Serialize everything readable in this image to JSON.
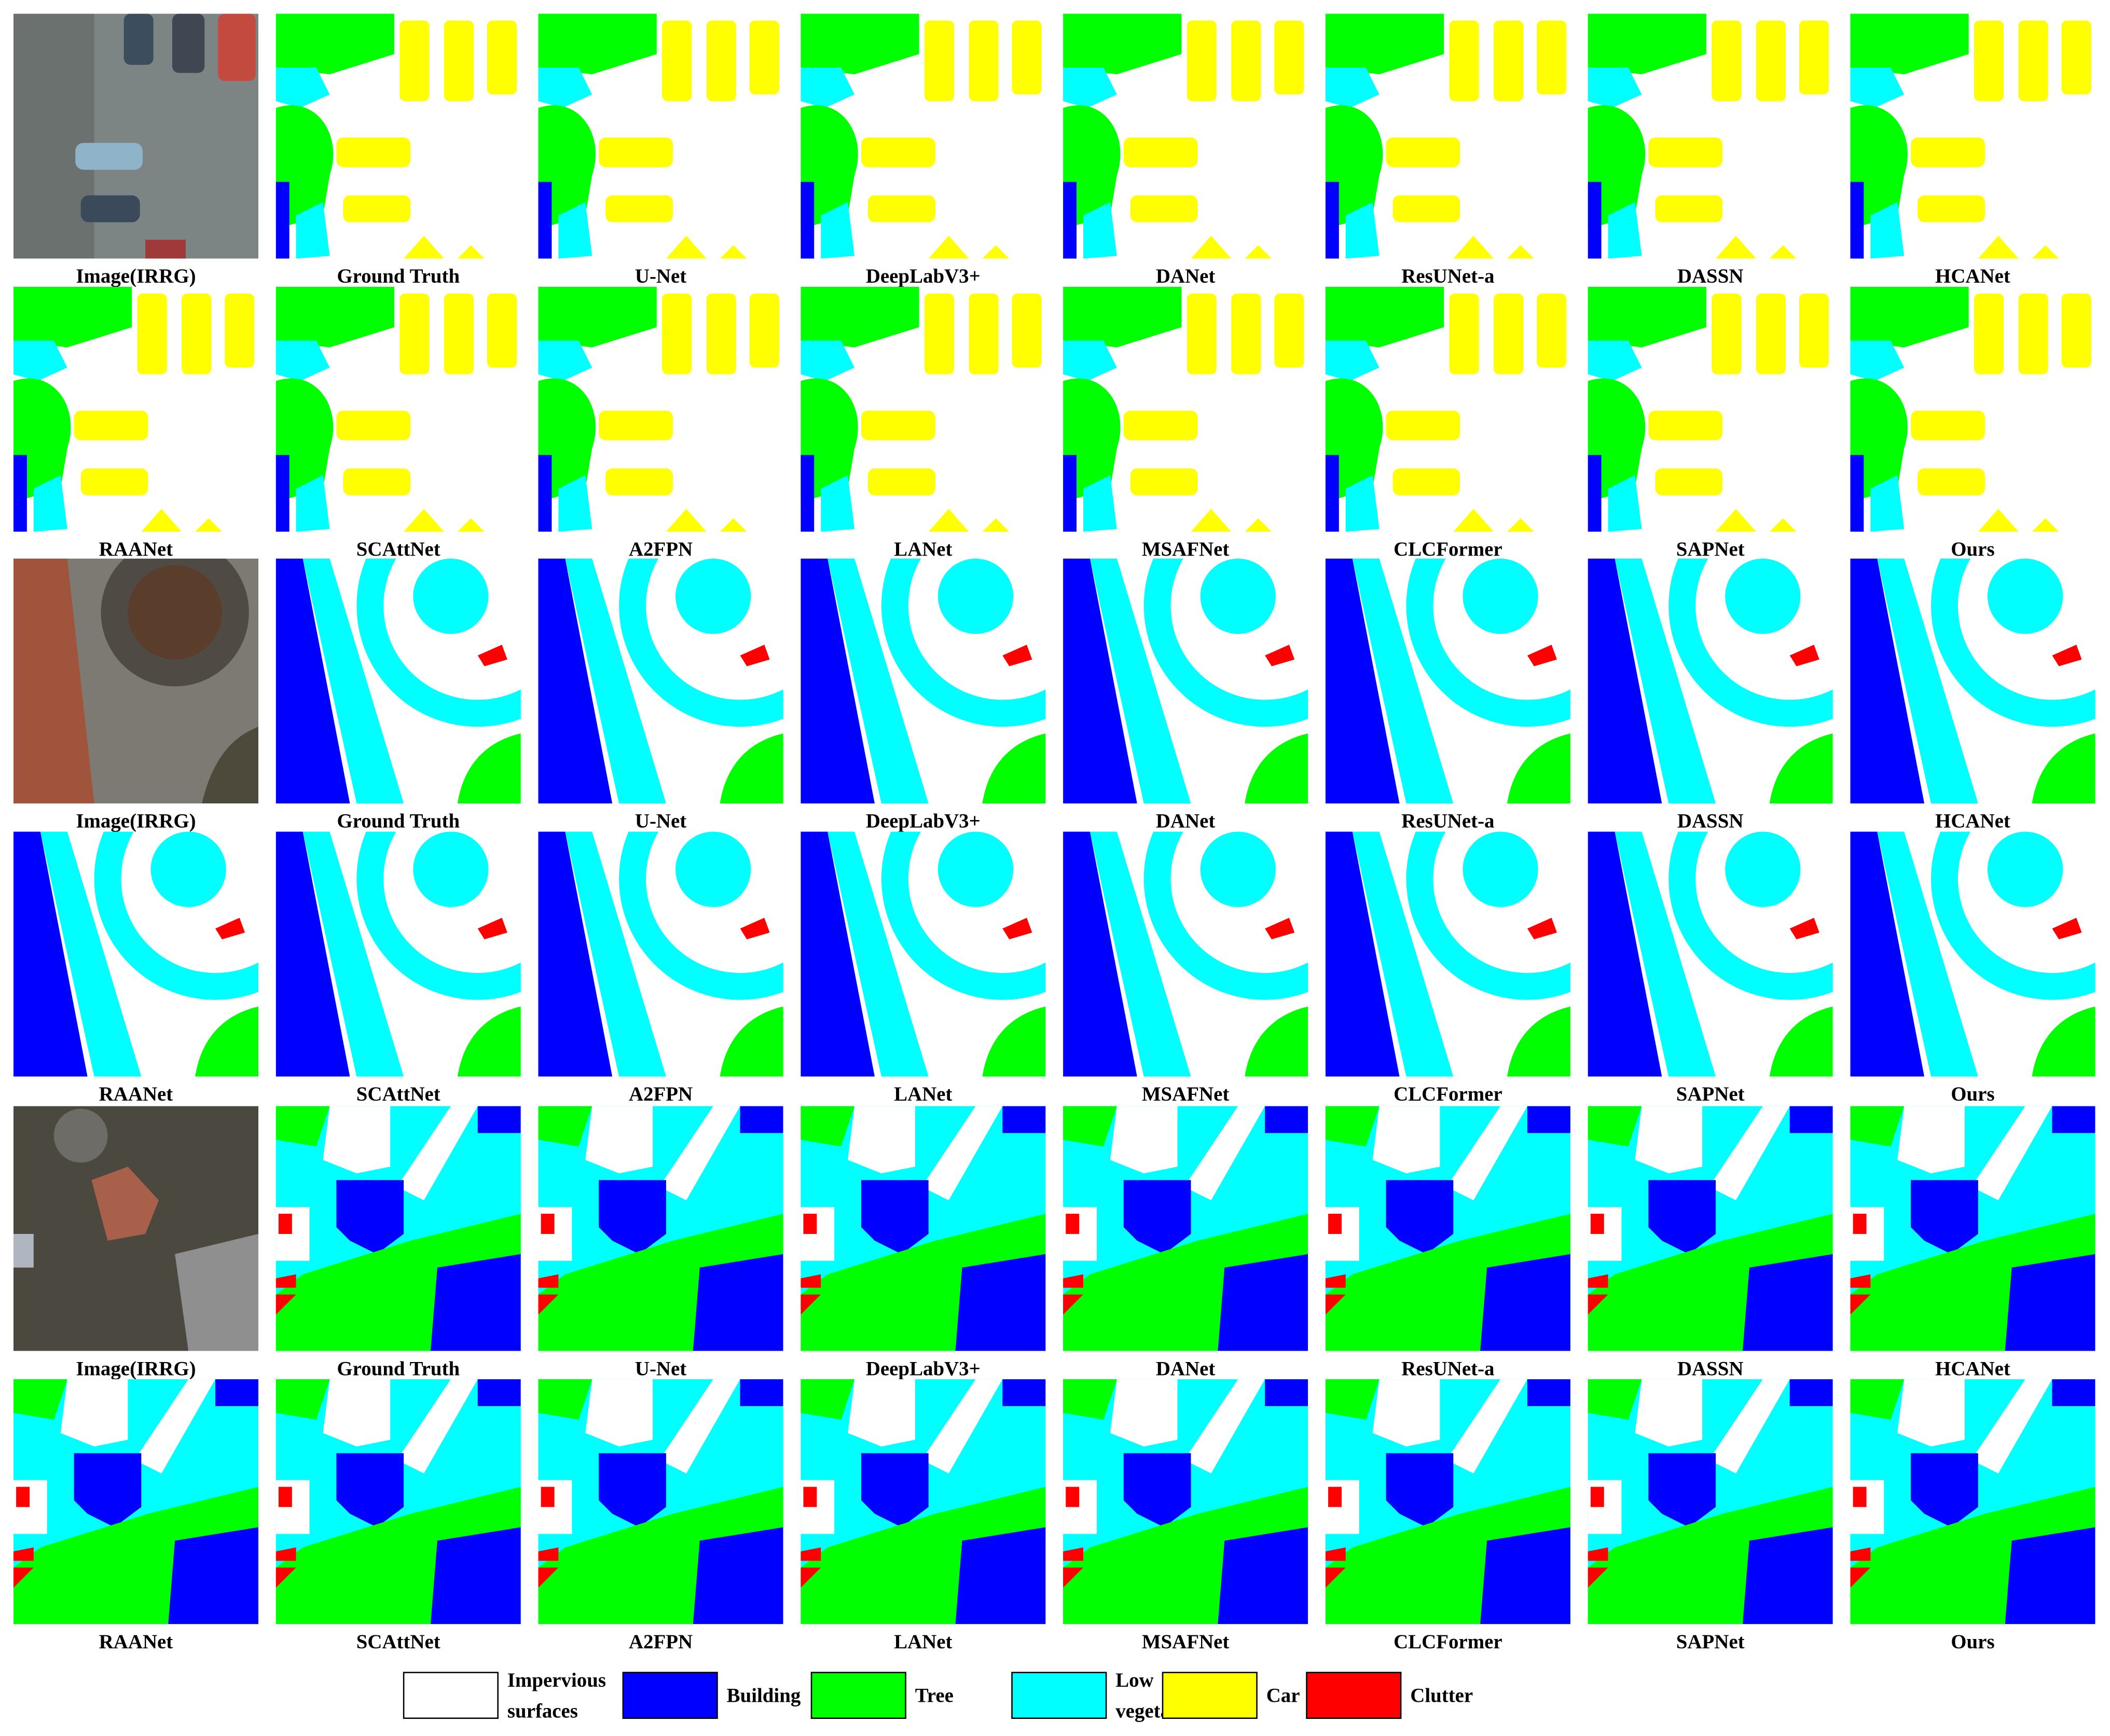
{
  "groups": [
    {
      "labels": [
        "Image(IRRG)",
        "Ground Truth",
        "U-Net",
        "DeepLabV3+",
        "DANet",
        "ResUNet-a",
        "DASSN",
        "HCANet",
        "RAANet",
        "SCAttNet",
        "A2FPN",
        "LANet",
        "MSAFNet",
        "CLCFormer",
        "SAPNet",
        "Ours"
      ]
    },
    {
      "labels": [
        "Image(IRRG)",
        "Ground Truth",
        "U-Net",
        "DeepLabV3+",
        "DANet",
        "ResUNet-a",
        "DASSN",
        "HCANet",
        "RAANet",
        "SCAttNet",
        "A2FPN",
        "LANet",
        "MSAFNet",
        "CLCFormer",
        "SAPNet",
        "Ours"
      ]
    },
    {
      "labels": [
        "Image(IRRG)",
        "Ground Truth",
        "U-Net",
        "DeepLabV3+",
        "DANet",
        "ResUNet-a",
        "DASSN",
        "HCANet",
        "RAANet",
        "SCAttNet",
        "A2FPN",
        "LANet",
        "MSAFNet",
        "CLCFormer",
        "SAPNet",
        "Ours"
      ]
    }
  ],
  "legend": [
    {
      "lines": [
        "Impervious",
        "surfaces"
      ],
      "color": "#ffffff"
    },
    {
      "lines": [
        "Building"
      ],
      "color": "#0000ff"
    },
    {
      "lines": [
        "Tree"
      ],
      "color": "#00ff00"
    },
    {
      "lines": [
        "Low",
        "vegetation"
      ],
      "color": "#00ffff"
    },
    {
      "lines": [
        "Car"
      ],
      "color": "#ffff00"
    },
    {
      "lines": [
        "Clutter"
      ],
      "color": "#ff0000"
    }
  ]
}
